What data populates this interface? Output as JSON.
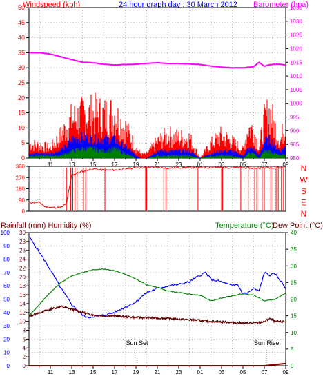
{
  "header": {
    "left": "Windspeed (kph)",
    "center": "24 hour graph day : 30 March 2012",
    "right": "Barometer (hpa)"
  },
  "chart_data": [
    {
      "type": "line",
      "series": [
        {
          "name": "Windspeed (kph)",
          "color": "#ff0000"
        },
        {
          "name": "Barometer (hpa)",
          "color": "#ff00ff"
        }
      ],
      "x_ticks": [
        "11",
        "13",
        "15",
        "17",
        "19",
        "21",
        "23",
        "01",
        "03",
        "05",
        "07",
        "09"
      ],
      "y_left": {
        "label": "Windspeed (kph)",
        "ticks": [
          0,
          5,
          10,
          15,
          20,
          25,
          30,
          35,
          40,
          45,
          50
        ],
        "range": [
          0,
          50
        ]
      },
      "y_right": {
        "label": "Barometer (hpa)",
        "ticks": [
          980,
          985,
          990,
          995,
          1000,
          1005,
          1010,
          1015,
          1020,
          1025,
          1030,
          1035
        ],
        "range": [
          980,
          1035
        ]
      },
      "barometer_hpa": {
        "hours": [
          9,
          10,
          11,
          12,
          13,
          14,
          15,
          16,
          17,
          18,
          19,
          20,
          21,
          22,
          23,
          24,
          25,
          26,
          27,
          28,
          29,
          30,
          30.5,
          31,
          31.5,
          32,
          32.5,
          33
        ],
        "values": [
          1018.5,
          1018.5,
          1018.0,
          1017.0,
          1016.0,
          1015.0,
          1014.8,
          1014.3,
          1014.0,
          1014.2,
          1014.3,
          1014.6,
          1014.8,
          1014.6,
          1014.6,
          1014.4,
          1014.2,
          1013.6,
          1013.2,
          1013.0,
          1013.0,
          1013.4,
          1015.0,
          1013.6,
          1014.1,
          1014.3,
          1014.3,
          1014.0
        ]
      },
      "windspeed_profile": {
        "hours": [
          9,
          10,
          11,
          11.8,
          12.5,
          13,
          14,
          15,
          16,
          17,
          17.5,
          18,
          19,
          19.5,
          20,
          21,
          22,
          23,
          24,
          25,
          26,
          27,
          28,
          29,
          29.5,
          30,
          30.5,
          31,
          31.5,
          32,
          32.5,
          33
        ],
        "gust_max": [
          7,
          6,
          5,
          10,
          15,
          19,
          21,
          22,
          21,
          22,
          18,
          15,
          5,
          2,
          2,
          8,
          11,
          10,
          10,
          0,
          7,
          11,
          8,
          4,
          15,
          14,
          5,
          18,
          23,
          15,
          8,
          19
        ],
        "avg_level": [
          2,
          2,
          2,
          3,
          5,
          8,
          9,
          8,
          8,
          8,
          6,
          5,
          1,
          0,
          0,
          3,
          3,
          3,
          3,
          0,
          2,
          3,
          3,
          1,
          4,
          4,
          1,
          7,
          8,
          5,
          3,
          5
        ],
        "low_level": [
          1,
          1,
          1,
          1,
          2,
          3,
          4,
          4,
          3,
          4,
          3,
          2,
          0,
          0,
          0,
          1,
          1,
          1,
          1,
          0,
          1,
          1,
          1,
          0,
          2,
          2,
          0,
          3,
          3,
          2,
          1,
          2
        ]
      }
    },
    {
      "type": "line",
      "series": [
        {
          "name": "Wind direction",
          "color": "#ff0000"
        }
      ],
      "y_left_ticks": [
        0,
        90,
        180,
        270,
        360
      ],
      "y_right_labels": [
        "N",
        "W",
        "S",
        "E",
        "N"
      ],
      "direction_deg": {
        "hours": [
          9,
          10,
          10.5,
          11,
          11.5,
          12,
          12.5,
          13,
          14,
          15,
          16,
          17,
          18,
          19,
          20,
          21,
          22,
          23,
          24,
          25,
          26,
          27,
          28,
          29,
          30,
          31,
          32,
          33
        ],
        "values": [
          70,
          70,
          35,
          30,
          30,
          30,
          60,
          290,
          320,
          340,
          330,
          330,
          340,
          350,
          350,
          350,
          345,
          350,
          350,
          350,
          350,
          350,
          350,
          350,
          345,
          350,
          350,
          350
        ]
      }
    },
    {
      "type": "line",
      "header_left": "Rainfall (mm)  Humidity (%)",
      "header_right_a": "Temperature (°C)",
      "header_right_b": "Dew Point (°C)",
      "series": [
        {
          "name": "Humidity (%)",
          "color": "#0000ff"
        },
        {
          "name": "Temperature (°C)",
          "color": "#008000"
        },
        {
          "name": "Dew Point (°C)",
          "color": "#600000"
        },
        {
          "name": "Rainfall (mm)",
          "color": "#800000"
        }
      ],
      "y_humidity": {
        "ticks": [
          0,
          10,
          20,
          30,
          40,
          50,
          60,
          70,
          80,
          90,
          100
        ],
        "range": [
          0,
          100
        ]
      },
      "y_rain": {
        "ticks": [
          0,
          2,
          4,
          6,
          8,
          10,
          12,
          14,
          16,
          18,
          20,
          22,
          24,
          26,
          28,
          30
        ],
        "range": [
          0,
          30
        ]
      },
      "y_temp": {
        "ticks": [
          0,
          5,
          10,
          15,
          20,
          25,
          30,
          35,
          40
        ],
        "range": [
          0,
          40
        ]
      },
      "humidity": {
        "hours": [
          9,
          10,
          11,
          12,
          13,
          14,
          14.5,
          15,
          16,
          17,
          18,
          19,
          20,
          21,
          22,
          23,
          24,
          25,
          25.5,
          26,
          27,
          28,
          28.5,
          29,
          29.5,
          30,
          30.5,
          31,
          31.5,
          32,
          32.5,
          33
        ],
        "values": [
          97,
          85,
          72,
          58,
          46,
          38,
          36,
          37,
          38,
          40,
          44,
          48,
          55,
          58,
          60,
          61,
          63,
          68,
          70,
          65,
          63,
          60,
          61,
          54,
          55,
          58,
          56,
          70,
          68,
          69,
          64,
          58
        ]
      },
      "temperature": {
        "hours": [
          9,
          10,
          11,
          12,
          13,
          14,
          15,
          15.5,
          16,
          17,
          18,
          19,
          20,
          21,
          22,
          23,
          24,
          25,
          26,
          27,
          28,
          29,
          30,
          31,
          32,
          33
        ],
        "values": [
          15,
          18.5,
          22,
          25,
          27,
          28,
          28.8,
          29,
          29,
          28.6,
          27.5,
          26,
          24.3,
          23.5,
          22.5,
          22,
          21.5,
          21.2,
          19.5,
          20.3,
          21,
          21.6,
          21.2,
          19.5,
          20,
          21.8
        ]
      },
      "dew_point": {
        "hours": [
          9,
          10,
          11,
          12,
          13,
          14,
          15,
          16,
          17,
          18,
          19,
          20,
          21,
          22,
          23,
          24,
          25,
          26,
          27,
          28,
          29,
          30,
          31,
          31.5,
          32,
          33
        ],
        "values": [
          14.8,
          16,
          17,
          17.8,
          17,
          16,
          15.2,
          15,
          15,
          14.7,
          14.5,
          14.4,
          14.3,
          14.2,
          14,
          13.8,
          13.6,
          13.3,
          13.2,
          13,
          12.8,
          12.8,
          13.2,
          14.2,
          13.3,
          13.2
        ]
      },
      "rainfall": {
        "hours": [
          9,
          31,
          33
        ],
        "values": [
          0,
          0,
          0.5
        ]
      },
      "annotations": [
        {
          "text": "Sun Set",
          "hour": 19.1
        },
        {
          "text": "Sun Rise",
          "hour": 31.2
        }
      ],
      "x_ticks": [
        "11",
        "13",
        "15",
        "17",
        "19",
        "21",
        "23",
        "01",
        "03",
        "05",
        "07",
        "09"
      ]
    }
  ]
}
